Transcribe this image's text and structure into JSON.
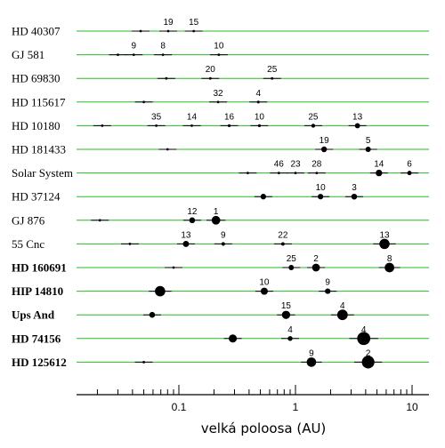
{
  "chart_data": {
    "type": "scatter",
    "xlabel": "velká poloosa (AU)",
    "xscale": "log",
    "xlim": [
      0.013,
      11
    ],
    "x_ticks": [
      {
        "value": 0.1,
        "label": "0.1"
      },
      {
        "value": 1,
        "label": "1"
      },
      {
        "value": 10,
        "label": "10"
      }
    ],
    "colors": {
      "track": "#22bb22",
      "planet": "#000000",
      "axis": "#000000"
    },
    "systems": [
      {
        "name": "HD 40307",
        "bold": false,
        "planets": [
          {
            "a": 0.047,
            "mass": 0.013,
            "label": ""
          },
          {
            "a": 0.081,
            "mass": 0.021,
            "label": "19"
          },
          {
            "a": 0.134,
            "mass": 0.029,
            "label": "15"
          }
        ]
      },
      {
        "name": "GJ 581",
        "bold": false,
        "planets": [
          {
            "a": 0.03,
            "mass": 0.006,
            "label": ""
          },
          {
            "a": 0.041,
            "mass": 0.05,
            "label": "9"
          },
          {
            "a": 0.073,
            "mass": 0.017,
            "label": "8"
          },
          {
            "a": 0.22,
            "mass": 0.022,
            "label": "10"
          }
        ]
      },
      {
        "name": "HD 69830",
        "bold": false,
        "planets": [
          {
            "a": 0.078,
            "mass": 0.033,
            "label": ""
          },
          {
            "a": 0.186,
            "mass": 0.038,
            "label": "20"
          },
          {
            "a": 0.63,
            "mass": 0.056,
            "label": "25"
          }
        ]
      },
      {
        "name": "HD 115617",
        "bold": false,
        "planets": [
          {
            "a": 0.05,
            "mass": 0.016,
            "label": ""
          },
          {
            "a": 0.217,
            "mass": 0.033,
            "label": "32"
          },
          {
            "a": 0.48,
            "mass": 0.071,
            "label": "4"
          }
        ]
      },
      {
        "name": "HD 10180",
        "bold": false,
        "planets": [
          {
            "a": 0.022,
            "mass": 0.004,
            "label": ""
          },
          {
            "a": 0.064,
            "mass": 0.042,
            "label": "35"
          },
          {
            "a": 0.129,
            "mass": 0.036,
            "label": "14"
          },
          {
            "a": 0.27,
            "mass": 0.08,
            "label": "16"
          },
          {
            "a": 0.49,
            "mass": 0.08,
            "label": "10"
          },
          {
            "a": 1.42,
            "mass": 0.2,
            "label": "25"
          },
          {
            "a": 3.4,
            "mass": 0.5,
            "label": "13"
          }
        ]
      },
      {
        "name": "HD 181433",
        "bold": false,
        "planets": [
          {
            "a": 0.08,
            "mass": 0.024,
            "label": ""
          },
          {
            "a": 1.76,
            "mass": 0.64,
            "label": "19"
          },
          {
            "a": 4.2,
            "mass": 0.54,
            "label": "5"
          }
        ]
      },
      {
        "name": "Solar System",
        "bold": false,
        "planets": [
          {
            "a": 0.39,
            "mass": 0.0002,
            "label": ""
          },
          {
            "a": 0.72,
            "mass": 0.0026,
            "label": "46"
          },
          {
            "a": 1.0,
            "mass": 0.003,
            "label": "23"
          },
          {
            "a": 1.52,
            "mass": 0.0003,
            "label": "28"
          },
          {
            "a": 5.2,
            "mass": 1.0,
            "label": "14"
          },
          {
            "a": 9.5,
            "mass": 0.3,
            "label": "6"
          }
        ]
      },
      {
        "name": "HD 37124",
        "bold": false,
        "planets": [
          {
            "a": 0.53,
            "mass": 0.61,
            "label": ""
          },
          {
            "a": 1.64,
            "mass": 0.6,
            "label": "10"
          },
          {
            "a": 3.19,
            "mass": 0.68,
            "label": "3"
          }
        ]
      },
      {
        "name": "GJ 876",
        "bold": false,
        "planets": [
          {
            "a": 0.021,
            "mass": 0.018,
            "label": ""
          },
          {
            "a": 0.13,
            "mass": 0.71,
            "label": "12"
          },
          {
            "a": 0.208,
            "mass": 2.3,
            "label": "1"
          }
        ]
      },
      {
        "name": "55 Cnc",
        "bold": false,
        "planets": [
          {
            "a": 0.038,
            "mass": 0.03,
            "label": ""
          },
          {
            "a": 0.115,
            "mass": 0.8,
            "label": "13"
          },
          {
            "a": 0.24,
            "mass": 0.17,
            "label": "9"
          },
          {
            "a": 0.78,
            "mass": 0.14,
            "label": "22"
          },
          {
            "a": 5.8,
            "mass": 3.8,
            "label": "13"
          }
        ]
      },
      {
        "name": "HD 160691",
        "bold": true,
        "planets": [
          {
            "a": 0.09,
            "mass": 0.033,
            "label": ""
          },
          {
            "a": 0.92,
            "mass": 0.52,
            "label": "25"
          },
          {
            "a": 1.5,
            "mass": 1.68,
            "label": "2"
          },
          {
            "a": 6.4,
            "mass": 3.1,
            "label": "8"
          }
        ]
      },
      {
        "name": "HIP 14810",
        "bold": true,
        "planets": [
          {
            "a": 0.069,
            "mass": 3.9,
            "label": ""
          },
          {
            "a": 0.54,
            "mass": 1.3,
            "label": "10"
          },
          {
            "a": 1.89,
            "mass": 0.6,
            "label": "9"
          }
        ]
      },
      {
        "name": "Ups And",
        "bold": true,
        "planets": [
          {
            "a": 0.059,
            "mass": 0.69,
            "label": ""
          },
          {
            "a": 0.83,
            "mass": 1.98,
            "label": "15"
          },
          {
            "a": 2.53,
            "mass": 4.13,
            "label": "4"
          }
        ]
      },
      {
        "name": "HD 74156",
        "bold": true,
        "planets": [
          {
            "a": 0.29,
            "mass": 1.88,
            "label": ""
          },
          {
            "a": 0.9,
            "mass": 0.4,
            "label": "4"
          },
          {
            "a": 3.85,
            "mass": 8.0,
            "label": "4"
          }
        ]
      },
      {
        "name": "HD 125612",
        "bold": true,
        "planets": [
          {
            "a": 0.05,
            "mass": 0.058,
            "label": ""
          },
          {
            "a": 1.37,
            "mass": 3.0,
            "label": "9"
          },
          {
            "a": 4.2,
            "mass": 7.2,
            "label": "2"
          }
        ]
      }
    ]
  }
}
